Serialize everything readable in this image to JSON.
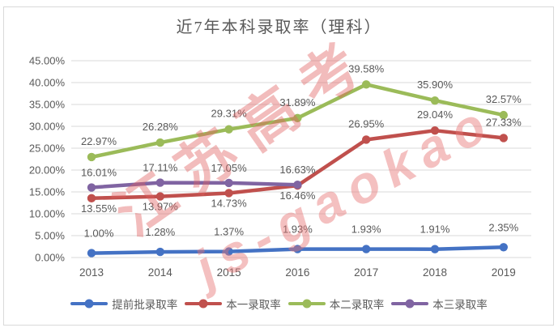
{
  "title": "近7年本科录取率（理科）",
  "watermark": {
    "text_cn": "江苏高考",
    "text_en": "js-gaokao",
    "color": "#E06060"
  },
  "frame": {
    "border_color": "#D9D9D9",
    "background": "#FFFFFF"
  },
  "chart_data": {
    "type": "line",
    "title": "近7年本科录取率（理科）",
    "xlabel": "",
    "ylabel": "",
    "categories": [
      "2013",
      "2014",
      "2015",
      "2016",
      "2017",
      "2018",
      "2019"
    ],
    "series": [
      {
        "name": "提前批录取率",
        "color": "#4472C4",
        "values": [
          1.0,
          1.28,
          1.37,
          1.93,
          1.93,
          1.91,
          2.35
        ],
        "data_labels": [
          "1.00%",
          "1.28%",
          "1.37%",
          "1.93%",
          "1.93%",
          "1.91%",
          "2.35%"
        ],
        "label_side": [
          "above",
          "above",
          "above",
          "above",
          "above",
          "above",
          "above"
        ],
        "label_gap_above": 20
      },
      {
        "name": "本一录取率",
        "color": "#C0504D",
        "values": [
          13.55,
          13.97,
          14.73,
          16.46,
          26.95,
          29.04,
          27.33
        ],
        "data_labels": [
          "13.55%",
          "13.97%",
          "14.73%",
          "16.46%",
          "26.95%",
          "29.04%",
          "27.33%"
        ],
        "label_side": [
          "below",
          "below",
          "below",
          "below",
          "above",
          "above",
          "above"
        ],
        "label_gap_above": 15
      },
      {
        "name": "本二录取率",
        "color": "#9BBB59",
        "values": [
          22.97,
          26.28,
          29.31,
          31.89,
          39.58,
          35.9,
          32.57
        ],
        "data_labels": [
          "22.97%",
          "26.28%",
          "29.31%",
          "31.89%",
          "39.58%",
          "35.90%",
          "32.57%"
        ],
        "label_side": [
          "above",
          "above",
          "above",
          "above",
          "above",
          "above",
          "above"
        ],
        "label_gap_above": 15
      },
      {
        "name": "本三录取率",
        "color": "#8064A2",
        "values": [
          16.01,
          17.11,
          17.05,
          16.63,
          null,
          null,
          null
        ],
        "data_labels": [
          "16.01%",
          "17.11%",
          "17.05%",
          "16.63%",
          "",
          "",
          ""
        ],
        "label_side": [
          "above",
          "above",
          "above",
          "above",
          "above",
          "above",
          "above"
        ],
        "label_gap_above": 14
      }
    ],
    "ylim": [
      0,
      45
    ],
    "ytick_step": 5,
    "ytick_labels": [
      "0.00%",
      "5.00%",
      "10.00%",
      "15.00%",
      "20.00%",
      "25.00%",
      "30.00%",
      "35.00%",
      "40.00%",
      "45.00%"
    ],
    "grid": true,
    "grid_color": "#D9D9D9",
    "axis_text_color": "#595959",
    "legend_position": "bottom",
    "legend_labels": [
      "提前批录取率",
      "本一录取率",
      "本二录取率",
      "本三录取率"
    ]
  }
}
